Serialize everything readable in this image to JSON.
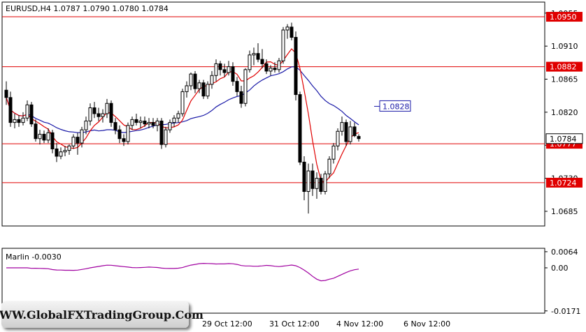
{
  "chart_data": {
    "type": "candlestick",
    "symbol_header": "EURUSD,H4  1.0787 1.0790 1.0780 1.0784",
    "price_axis_ticks": [
      "1.0955",
      "1.0910",
      "1.0865",
      "1.0820",
      "1.0775",
      "1.0730",
      "1.0685"
    ],
    "ylim": [
      1.0665,
      1.097
    ],
    "time_labels": [
      "29 Oct 12:00",
      "31 Oct 12:00",
      "4 Nov 12:00",
      "6 Nov 12:00"
    ],
    "levels": [
      {
        "value": 1.095,
        "label": "1.0950",
        "color": "#e00000"
      },
      {
        "value": 1.0882,
        "label": "1.0882",
        "color": "#e00000"
      },
      {
        "value": 1.0777,
        "label": "1.0777",
        "color": "#e00000"
      },
      {
        "value": 1.0724,
        "label": "1.0724",
        "color": "#e00000"
      }
    ],
    "ma_callout": {
      "value": 1.0828,
      "label": "1.0828",
      "color": "#1a1aa8"
    },
    "current_price": {
      "value": 1.0784,
      "label": "1.0784"
    },
    "candles": [
      [
        1.085,
        1.0862,
        1.083,
        1.084
      ],
      [
        1.084,
        1.0848,
        1.08,
        1.0806
      ],
      [
        1.0806,
        1.0818,
        1.0798,
        1.081
      ],
      [
        1.081,
        1.0816,
        1.08,
        1.0806
      ],
      [
        1.0806,
        1.082,
        1.0802,
        1.0812
      ],
      [
        1.0812,
        1.0836,
        1.0808,
        1.083
      ],
      [
        1.083,
        1.0834,
        1.08,
        1.0804
      ],
      [
        1.0804,
        1.081,
        1.078,
        1.0784
      ],
      [
        1.0784,
        1.0796,
        1.0776,
        1.079
      ],
      [
        1.079,
        1.0795,
        1.0778,
        1.0782
      ],
      [
        1.0782,
        1.0798,
        1.0778,
        1.0792
      ],
      [
        1.0792,
        1.0796,
        1.0764,
        1.077
      ],
      [
        1.077,
        1.0778,
        1.0752,
        1.076
      ],
      [
        1.076,
        1.0772,
        1.0756,
        1.0766
      ],
      [
        1.0766,
        1.0774,
        1.076,
        1.0768
      ],
      [
        1.0768,
        1.0776,
        1.0762,
        1.0774
      ],
      [
        1.0774,
        1.079,
        1.077,
        1.0786
      ],
      [
        1.0786,
        1.0792,
        1.0762,
        1.0778
      ],
      [
        1.0778,
        1.08,
        1.0772,
        1.0796
      ],
      [
        1.0796,
        1.0814,
        1.079,
        1.0808
      ],
      [
        1.0808,
        1.0832,
        1.0802,
        1.0826
      ],
      [
        1.0826,
        1.0834,
        1.0812,
        1.0818
      ],
      [
        1.0818,
        1.0826,
        1.0808,
        1.0814
      ],
      [
        1.0814,
        1.0824,
        1.0806,
        1.0818
      ],
      [
        1.0818,
        1.0838,
        1.0812,
        1.0832
      ],
      [
        1.0832,
        1.0836,
        1.08,
        1.0806
      ],
      [
        1.0806,
        1.0812,
        1.079,
        1.0796
      ],
      [
        1.0796,
        1.0802,
        1.0778,
        1.0784
      ],
      [
        1.0784,
        1.079,
        1.0774,
        1.078
      ],
      [
        1.078,
        1.0806,
        1.0776,
        1.0802
      ],
      [
        1.0802,
        1.0814,
        1.0796,
        1.081
      ],
      [
        1.081,
        1.0818,
        1.0802,
        1.0806
      ],
      [
        1.0806,
        1.0814,
        1.0798,
        1.0808
      ],
      [
        1.0808,
        1.0814,
        1.08,
        1.0804
      ],
      [
        1.0804,
        1.0812,
        1.0798,
        1.0806
      ],
      [
        1.0806,
        1.0812,
        1.0798,
        1.0802
      ],
      [
        1.0802,
        1.0812,
        1.0794,
        1.0808
      ],
      [
        1.0808,
        1.0812,
        1.077,
        1.0776
      ],
      [
        1.0776,
        1.08,
        1.0772,
        1.0796
      ],
      [
        1.0796,
        1.081,
        1.0792,
        1.0806
      ],
      [
        1.0806,
        1.0816,
        1.08,
        1.0812
      ],
      [
        1.0812,
        1.0822,
        1.0806,
        1.0818
      ],
      [
        1.0818,
        1.0852,
        1.0814,
        1.0848
      ],
      [
        1.0848,
        1.0862,
        1.084,
        1.0856
      ],
      [
        1.0856,
        1.0874,
        1.085,
        1.0872
      ],
      [
        1.0872,
        1.0876,
        1.0846,
        1.0852
      ],
      [
        1.0852,
        1.0864,
        1.0846,
        1.086
      ],
      [
        1.086,
        1.0864,
        1.0838,
        1.0842
      ],
      [
        1.0842,
        1.0862,
        1.0838,
        1.0858
      ],
      [
        1.0858,
        1.0876,
        1.0852,
        1.087
      ],
      [
        1.087,
        1.0892,
        1.0862,
        1.0886
      ],
      [
        1.0886,
        1.089,
        1.087,
        1.0878
      ],
      [
        1.0878,
        1.0886,
        1.0868,
        1.0874
      ],
      [
        1.0874,
        1.089,
        1.087,
        1.0882
      ],
      [
        1.0882,
        1.0888,
        1.0856,
        1.0862
      ],
      [
        1.0862,
        1.0868,
        1.0842,
        1.0848
      ],
      [
        1.0848,
        1.0856,
        1.0826,
        1.0832
      ],
      [
        1.0832,
        1.088,
        1.0828,
        1.0878
      ],
      [
        1.0878,
        1.0904,
        1.0874,
        1.0898
      ],
      [
        1.0898,
        1.0908,
        1.0884,
        1.09
      ],
      [
        1.09,
        1.0914,
        1.0888,
        1.0892
      ],
      [
        1.0892,
        1.0906,
        1.088,
        1.0886
      ],
      [
        1.0886,
        1.0892,
        1.0872,
        1.0876
      ],
      [
        1.0876,
        1.0884,
        1.087,
        1.088
      ],
      [
        1.088,
        1.0888,
        1.0874,
        1.0878
      ],
      [
        1.0878,
        1.0894,
        1.0874,
        1.089
      ],
      [
        1.089,
        1.0936,
        1.0886,
        1.0932
      ],
      [
        1.0932,
        1.094,
        1.092,
        1.0936
      ],
      [
        1.0936,
        1.0942,
        1.0918,
        1.0922
      ],
      [
        1.0922,
        1.093,
        1.0836,
        1.0844
      ],
      [
        1.0844,
        1.0848,
        1.0748,
        1.0752
      ],
      [
        1.0752,
        1.076,
        1.07,
        1.0712
      ],
      [
        1.0712,
        1.075,
        1.0682,
        1.074
      ],
      [
        1.074,
        1.075,
        1.0706,
        1.0716
      ],
      [
        1.0716,
        1.0738,
        1.0702,
        1.073
      ],
      [
        1.073,
        1.0736,
        1.0708,
        1.0712
      ],
      [
        1.0712,
        1.074,
        1.0708,
        1.0736
      ],
      [
        1.0736,
        1.076,
        1.073,
        1.0756
      ],
      [
        1.0756,
        1.0778,
        1.075,
        1.0774
      ],
      [
        1.0774,
        1.0798,
        1.0768,
        1.0794
      ],
      [
        1.0794,
        1.0814,
        1.0788,
        1.0806
      ],
      [
        1.0806,
        1.081,
        1.0774,
        1.078
      ],
      [
        1.078,
        1.0808,
        1.0776,
        1.08
      ],
      [
        1.08,
        1.0806,
        1.0786,
        1.0788
      ],
      [
        1.0787,
        1.079,
        1.078,
        1.0784
      ]
    ]
  },
  "indicator": {
    "title": "Marlin -0.0030",
    "ticks": [
      "0.0064",
      "0.00",
      "-0.0171"
    ],
    "ylim": [
      -0.018,
      0.0072
    ]
  },
  "watermark": "WWW.GlobalFXTradingGroup.Com",
  "colors": {
    "level": "#e00000",
    "ma_fast": "#e00000",
    "ma_slow": "#1a1aa8",
    "oscillator": "#a000a0",
    "callout_bg": "#ffffff"
  }
}
